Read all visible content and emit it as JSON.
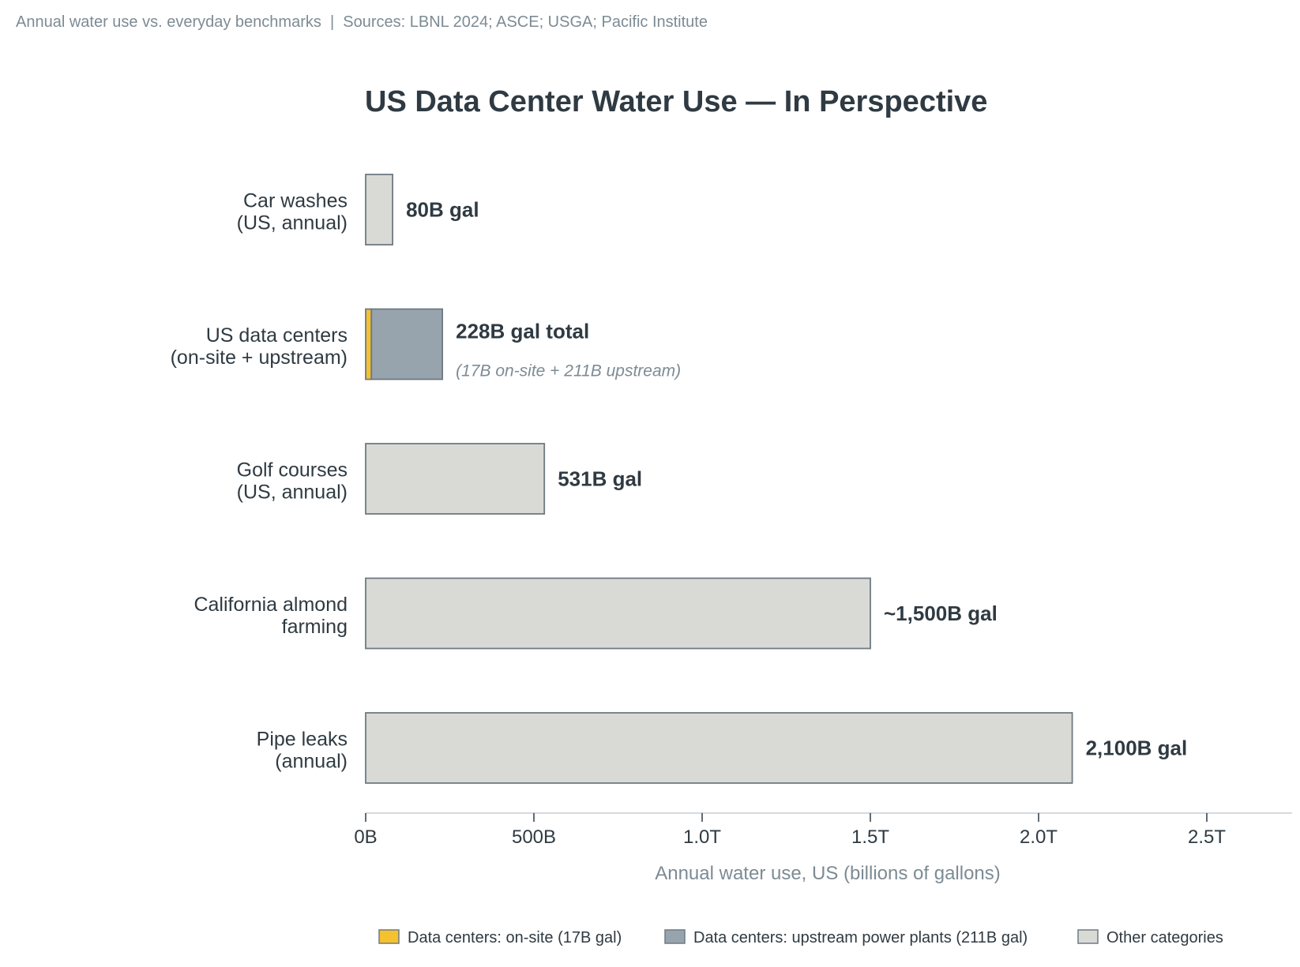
{
  "header": {
    "caption": "Annual water use vs. everyday benchmarks  |  Sources: LBNL 2024; ASCE; USGA; Pacific Institute"
  },
  "colors": {
    "onsite": "#f5c12e",
    "upstream": "#98a4ad",
    "other": "#d9dad6",
    "bar_stroke": "#6e7a83",
    "text_dark": "#2f3a42",
    "text_muted": "#7d8b94",
    "axis": "#c9ced2"
  },
  "chart_data": {
    "type": "bar",
    "orientation": "horizontal",
    "title": "US Data Center Water Use — In Perspective",
    "xlabel": "Annual water use, US (billions of gallons)",
    "ylabel": "",
    "xlim": [
      0,
      2750
    ],
    "x_ticks": [
      0,
      500,
      1000,
      1500,
      2000,
      2500
    ],
    "x_tick_labels": [
      "0B",
      "500B",
      "1.0T",
      "1.5T",
      "2.0T",
      "2.5T"
    ],
    "categories": [
      "Car washes\n(US, annual)",
      "US data centers\n(on-site + upstream)",
      "Golf courses\n(US, annual)",
      "California almond\nfarming",
      "Pipe leaks\n(annual)"
    ],
    "bars": [
      {
        "segments": [
          {
            "series": "other",
            "value": 80
          }
        ],
        "label": "80B gal",
        "sublabel": ""
      },
      {
        "segments": [
          {
            "series": "onsite",
            "value": 17
          },
          {
            "series": "upstream",
            "value": 211
          }
        ],
        "label": "228B gal total",
        "sublabel": "(17B on-site + 211B upstream)"
      },
      {
        "segments": [
          {
            "series": "other",
            "value": 531
          }
        ],
        "label": "531B gal",
        "sublabel": ""
      },
      {
        "segments": [
          {
            "series": "other",
            "value": 1500
          }
        ],
        "label": "~1,500B gal",
        "sublabel": ""
      },
      {
        "segments": [
          {
            "series": "other",
            "value": 2100
          }
        ],
        "label": "2,100B gal",
        "sublabel": ""
      }
    ],
    "legend": [
      {
        "series": "onsite",
        "label": "Data centers: on-site (17B gal)"
      },
      {
        "series": "upstream",
        "label": "Data centers: upstream power plants (211B gal)"
      },
      {
        "series": "other",
        "label": "Other categories"
      }
    ],
    "legend_position": "bottom",
    "grid": false
  }
}
